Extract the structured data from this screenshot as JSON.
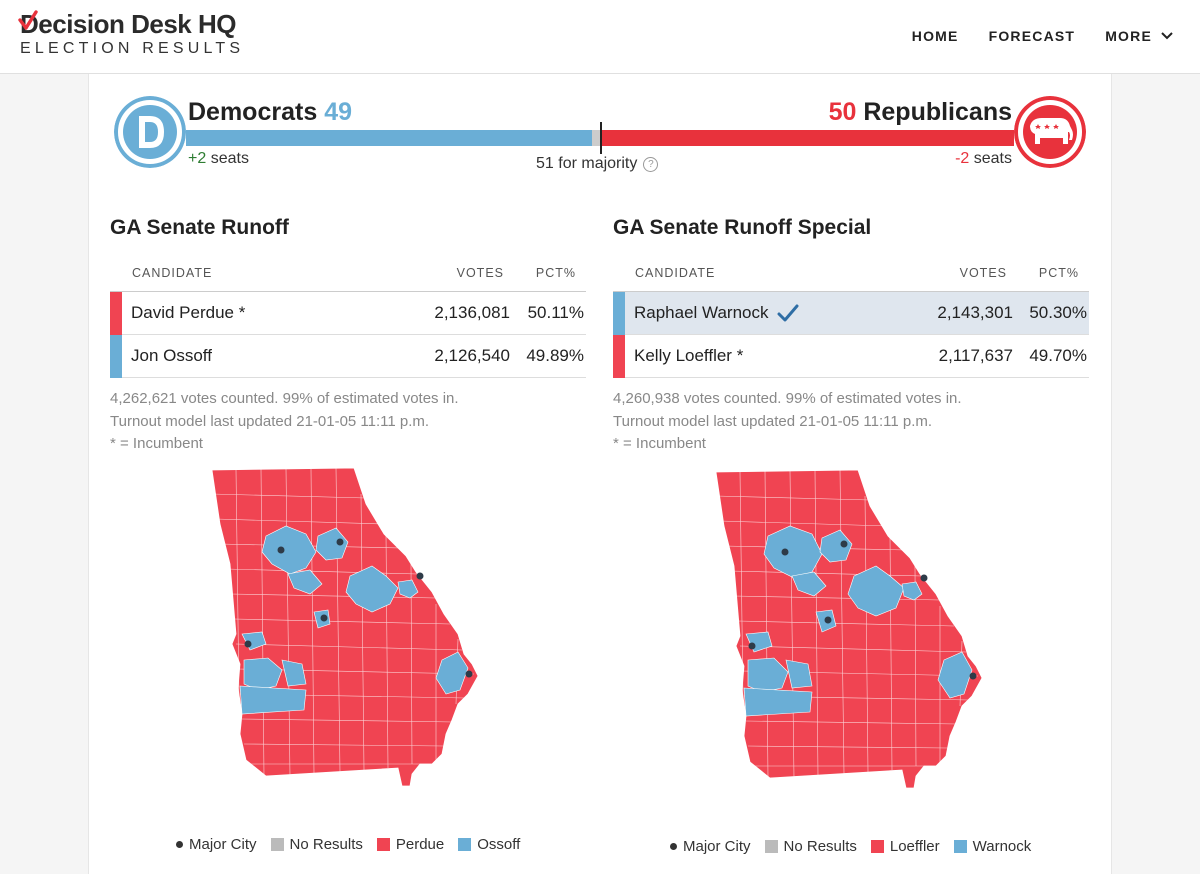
{
  "header": {
    "logo_main": "Decision Desk HQ",
    "logo_sub": "ELECTION RESULTS",
    "nav": [
      {
        "label": "HOME"
      },
      {
        "label": "FORECAST"
      },
      {
        "label": "MORE"
      }
    ]
  },
  "balance": {
    "dem": {
      "name": "Democrats",
      "count": "49",
      "seats_delta": "+2",
      "seats_word": "seats",
      "color": "#6aaed6"
    },
    "rep": {
      "name": "Republicans",
      "count": "50",
      "seats_delta": "-2",
      "seats_word": "seats",
      "color": "#e8323c"
    },
    "majority_text": "51 for majority",
    "help_icon": "?"
  },
  "races": [
    {
      "title": "GA Senate Runoff",
      "headers": {
        "candidate": "CANDIDATE",
        "votes": "VOTES",
        "pct": "PCT%"
      },
      "rows": [
        {
          "name": "David Perdue *",
          "votes": "2,136,081",
          "pct": "50.11%",
          "party": "rep",
          "winner": false
        },
        {
          "name": "Jon Ossoff",
          "votes": "2,126,540",
          "pct": "49.89%",
          "party": "dem",
          "winner": false
        }
      ],
      "notes": [
        "4,262,621 votes counted. 99% of estimated votes in.",
        "Turnout model last updated 21-01-05 11:11 p.m.",
        "* = Incumbent"
      ],
      "legend": {
        "city": "Major City",
        "no_results": "No Results",
        "rep": "Perdue",
        "dem": "Ossoff"
      }
    },
    {
      "title": "GA Senate Runoff Special",
      "headers": {
        "candidate": "CANDIDATE",
        "votes": "VOTES",
        "pct": "PCT%"
      },
      "rows": [
        {
          "name": "Raphael Warnock",
          "votes": "2,143,301",
          "pct": "50.30%",
          "party": "dem",
          "winner": true
        },
        {
          "name": "Kelly Loeffler *",
          "votes": "2,117,637",
          "pct": "49.70%",
          "party": "rep",
          "winner": false
        }
      ],
      "notes": [
        "4,260,938 votes counted. 99% of estimated votes in.",
        "Turnout model last updated 21-01-05 11:11 p.m.",
        "* = Incumbent"
      ],
      "legend": {
        "city": "Major City",
        "no_results": "No Results",
        "rep": "Loeffler",
        "dem": "Warnock"
      }
    }
  ],
  "colors": {
    "dem": "#6aaed6",
    "rep": "#f04452",
    "no_results": "#bbbbbb",
    "winner_check": "#2f6ea5"
  }
}
